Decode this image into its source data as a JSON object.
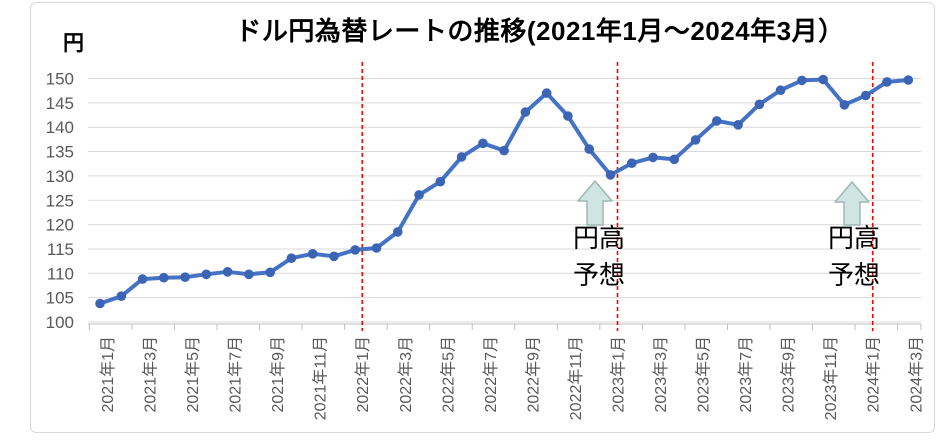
{
  "frame": {
    "background": "#FFFFFF",
    "border_color": "#D9D9D9"
  },
  "chart_data": {
    "type": "line",
    "title": "ドル円為替レートの推移(2021年1月～2024年3月）",
    "unit_label": "円",
    "x_tick_labels": [
      "2021年1月",
      "2021年3月",
      "2021年5月",
      "2021年7月",
      "2021年9月",
      "2021年11月",
      "2022年1月",
      "2022年3月",
      "2022年5月",
      "2022年7月",
      "2022年9月",
      "2022年11月",
      "2023年1月",
      "2023年3月",
      "2023年5月",
      "2023年7月",
      "2023年9月",
      "2023年11月",
      "2024年1月",
      "2024年3月"
    ],
    "points_per_tick": 2,
    "series": [
      {
        "name": "ドル円為替レート",
        "values": [
          103.8,
          105.3,
          108.8,
          109.1,
          109.2,
          109.8,
          110.3,
          109.8,
          110.2,
          113.1,
          114.0,
          113.5,
          114.8,
          115.2,
          118.5,
          126.1,
          128.8,
          133.9,
          136.7,
          135.2,
          143.1,
          147.0,
          142.3,
          135.5,
          130.2,
          132.6,
          133.8,
          133.4,
          137.4,
          141.3,
          140.5,
          144.7,
          147.6,
          149.6,
          149.8,
          144.6,
          146.5,
          149.3,
          149.7
        ]
      }
    ],
    "ylim": [
      100,
      150
    ],
    "ytick_step": 5,
    "grid": "horizontal",
    "legend": "none",
    "vlines": [
      {
        "x_label": "2022年1月",
        "x_index": 12,
        "style": "dashed"
      },
      {
        "x_label": "2023年1月",
        "x_index": 24,
        "style": "dashed"
      },
      {
        "x_label": "2024年1月",
        "x_index": 36,
        "style": "dashed"
      }
    ],
    "annotations": [
      {
        "text": "円高\n予想",
        "arrow": "up",
        "x_index": 23.3
      },
      {
        "text": "円高\n予想",
        "arrow": "up",
        "x_index": 35.4
      }
    ],
    "colors": {
      "line": "#4472C4",
      "marker": "#3C64B5",
      "grid": "#D9D9D9",
      "axis_line": "#BFBFBF",
      "axis_text": "#595959",
      "vline": "#FF0000",
      "arrow_fill": "#CEE5E2",
      "arrow_stroke": "#9FB6B4"
    }
  }
}
